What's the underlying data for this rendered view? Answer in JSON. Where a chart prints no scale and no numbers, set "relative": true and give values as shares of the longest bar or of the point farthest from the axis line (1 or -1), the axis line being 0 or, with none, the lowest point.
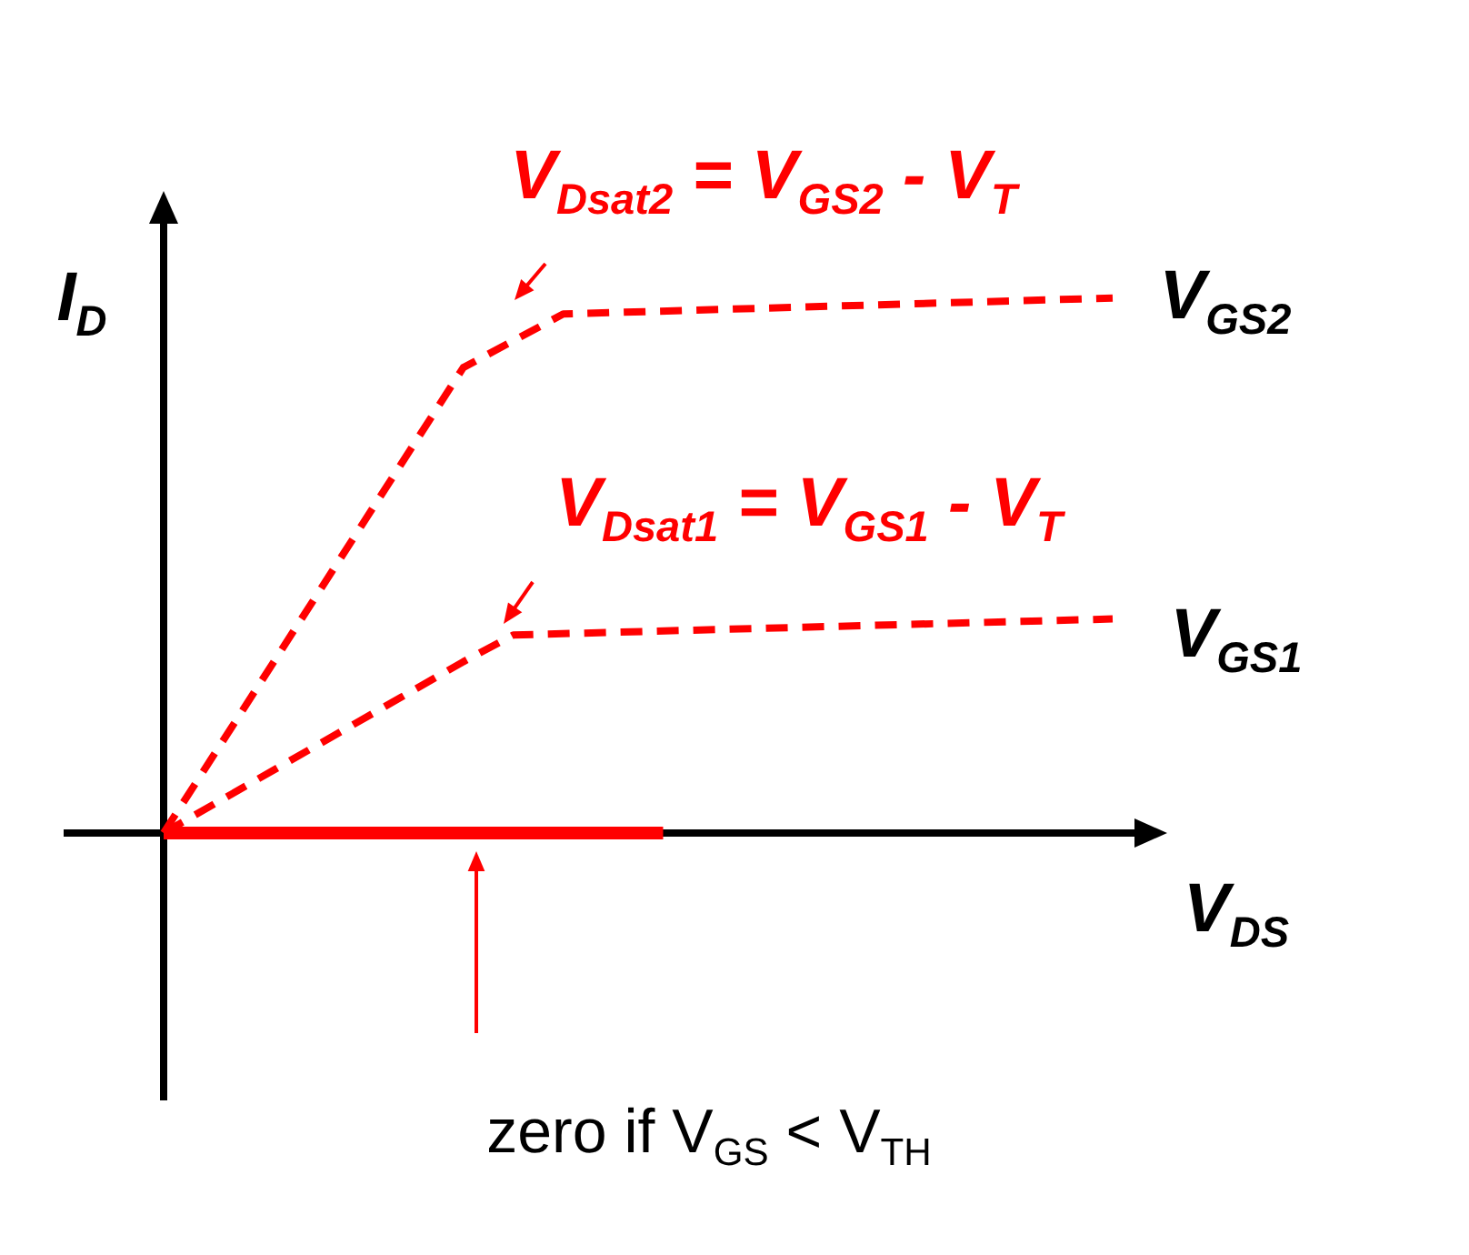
{
  "chart_data": {
    "type": "line",
    "relative": true,
    "xlabel": "V$_{DS}$",
    "ylabel": "I$_{D}$",
    "categories": [
      null,
      null,
      null,
      null,
      null,
      null,
      null,
      null,
      null,
      null,
      null,
      null,
      null,
      null,
      null,
      null,
      null,
      null,
      null,
      null
    ],
    "series": [
      {
        "name": "V$_{GS2}$",
        "color": "#ff0000",
        "line_style": "dashed",
        "values": [
          0,
          null,
          null,
          null,
          null,
          null,
          0.87,
          null,
          0.97,
          null,
          null,
          null,
          null,
          null,
          null,
          null,
          null,
          null,
          null,
          1.0
        ]
      },
      {
        "name": "V$_{GS1}$",
        "color": "#ff0000",
        "line_style": "dashed",
        "values": [
          0,
          null,
          null,
          null,
          null,
          null,
          0.32,
          0.37,
          null,
          null,
          null,
          null,
          null,
          null,
          null,
          null,
          null,
          null,
          null,
          0.4
        ]
      },
      {
        "color": "#ff0000",
        "line_style": "solid",
        "values": [
          0,
          null,
          null,
          null,
          null,
          null,
          null,
          null,
          null,
          null,
          0,
          null,
          null,
          null,
          null,
          null,
          null,
          null,
          null,
          null
        ]
      }
    ],
    "annotations": [
      "V$_{Dsat2}$ = V$_{GS2}$ - V$_{T}$",
      "V$_{Dsat1}$ = V$_{GS1}$ - V$_{T}$",
      "zero if V$_{GS}$ < V$_{TH}$"
    ],
    "legend": false,
    "marker": "none",
    "tick_labels": false
  }
}
